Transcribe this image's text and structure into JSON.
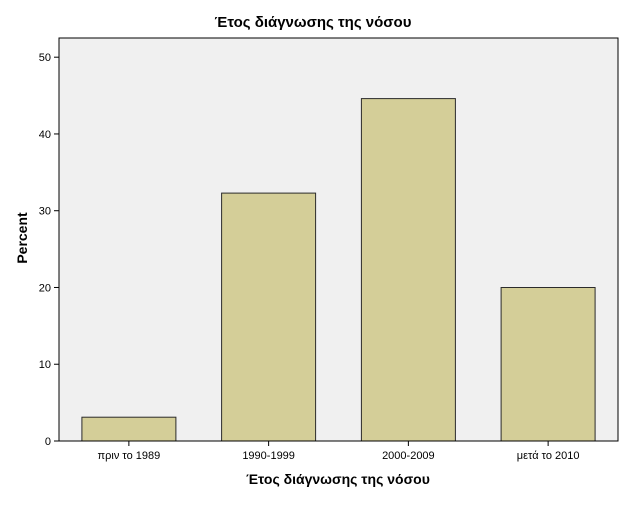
{
  "chart_data": {
    "type": "bar",
    "title": "Έτος διάγνωσης της νόσου",
    "xlabel": "Έτος διάγνωσης της νόσου",
    "ylabel": "Percent",
    "categories": [
      "πριν το 1989",
      "1990-1999",
      "2000-2009",
      "μετά το 2010"
    ],
    "values": [
      3.1,
      32.3,
      44.6,
      20.0
    ],
    "ylim": [
      0,
      52.5
    ],
    "yticks": [
      0,
      10,
      20,
      30,
      40,
      50
    ],
    "grid": false,
    "legend": "none",
    "colors": {
      "bar_fill": "#d4ce98",
      "bar_stroke": "#2b2b2b",
      "plot_background": "#f0f0f0",
      "frame": "#000000"
    }
  }
}
